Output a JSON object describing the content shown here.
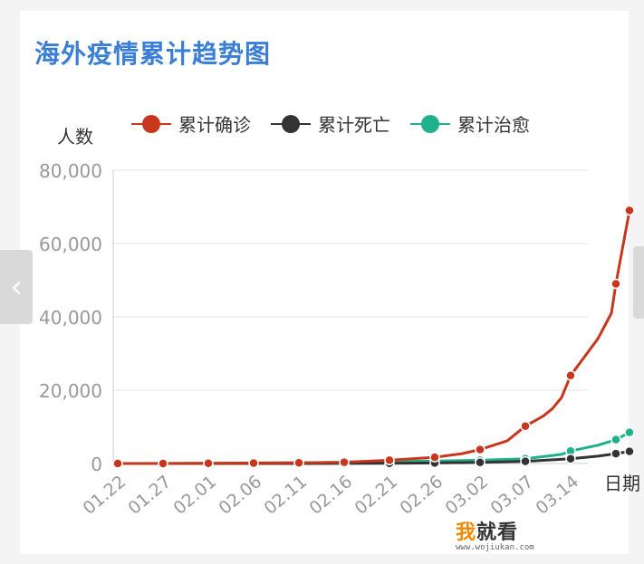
{
  "chart_data": {
    "type": "line",
    "title": "海外疫情累计趋势图",
    "ylabel": "人数",
    "xlabel": "日期",
    "ylim": [
      0,
      80000
    ],
    "yticks": [
      "0",
      "20,000",
      "40,000",
      "60,000",
      "80,000"
    ],
    "yticks_values": [
      0,
      20000,
      40000,
      60000,
      80000
    ],
    "legend_position": "top",
    "grid": true,
    "x_tick_labels": [
      "01.22",
      "01.27",
      "02.01",
      "02.06",
      "02.11",
      "02.16",
      "02.21",
      "02.26",
      "03.02",
      "03.07",
      "03.14"
    ],
    "series": [
      {
        "name": "累计确诊",
        "color": "#c7371d",
        "points": [
          [
            0,
            0
          ],
          [
            1,
            10
          ],
          [
            2,
            50
          ],
          [
            3,
            120
          ],
          [
            4,
            180
          ],
          [
            5,
            350
          ],
          [
            6,
            900
          ],
          [
            7,
            1700
          ],
          [
            7.6,
            2700
          ],
          [
            8,
            3800
          ],
          [
            8.6,
            6200
          ],
          [
            9,
            10200
          ],
          [
            9.4,
            13000
          ],
          [
            9.6,
            15000
          ],
          [
            9.8,
            18000
          ],
          [
            10,
            24000
          ],
          [
            10.6,
            34000
          ],
          [
            10.9,
            41000
          ],
          [
            11,
            49000
          ],
          [
            11.3,
            69000
          ]
        ]
      },
      {
        "name": "累计死亡",
        "color": "#333333",
        "points": [
          [
            0,
            0
          ],
          [
            1,
            2
          ],
          [
            2,
            5
          ],
          [
            3,
            8
          ],
          [
            4,
            12
          ],
          [
            5,
            20
          ],
          [
            6,
            60
          ],
          [
            7,
            150
          ],
          [
            8,
            300
          ],
          [
            9,
            600
          ],
          [
            10,
            1300
          ],
          [
            10.6,
            2000
          ],
          [
            11,
            2700
          ],
          [
            11.3,
            3300
          ]
        ]
      },
      {
        "name": "累计治愈",
        "color": "#1fb08c",
        "points": [
          [
            0,
            0
          ],
          [
            1,
            30
          ],
          [
            2,
            80
          ],
          [
            3,
            150
          ],
          [
            4,
            230
          ],
          [
            5,
            320
          ],
          [
            6,
            500
          ],
          [
            7,
            700
          ],
          [
            8,
            900
          ],
          [
            9,
            1300
          ],
          [
            9.8,
            2500
          ],
          [
            10,
            3400
          ],
          [
            10.6,
            5000
          ],
          [
            11,
            6500
          ],
          [
            11.3,
            8500
          ]
        ]
      }
    ]
  },
  "navigation": {
    "prev_glyph": "‹"
  },
  "watermark": {
    "accent": "我",
    "main": "就看",
    "sub": "www.wojiukan.com"
  }
}
